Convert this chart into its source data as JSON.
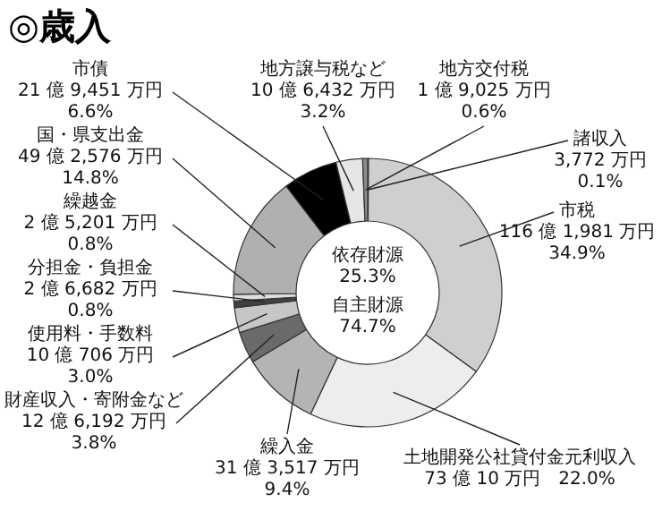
{
  "chart_data": {
    "type": "donut",
    "title": "◎歳入",
    "categories": [
      "諸収入",
      "市税",
      "土地開発公社貸付金元利収入",
      "繰入金",
      "財産収入・寄附金など",
      "使用料・手数料",
      "分担金・負担金",
      "繰越金",
      "国・県支出金",
      "市債",
      "地方譲与税など",
      "地方交付税"
    ],
    "values": [
      0.1,
      34.9,
      22.0,
      9.4,
      3.8,
      3.0,
      0.8,
      0.8,
      14.8,
      6.6,
      3.2,
      0.6
    ],
    "colors": [
      "#3a3a3a",
      "#cfcfcf",
      "#ededed",
      "#b4b4b4",
      "#6a6a6a",
      "#c6c6c6",
      "#404040",
      "#dedede",
      "#b0b0b0",
      "#000000",
      "#e6e6e6",
      "#8c8c8c"
    ],
    "value_labels": [
      "3,772 万円\n0.1%",
      "116 億 1,981 万円\n34.9%",
      "73 億 10 万円　22.0%",
      "31 億 3,517 万円\n9.4%",
      "12 億 6,192 万円\n3.8%",
      "10 億 706 万円\n3.0%",
      "2 億 6,682 万円\n0.8%",
      "2 億 5,201 万円\n0.8%",
      "49 億 2,576 万円\n14.8%",
      "21 億 9,451 万円\n6.6%",
      "10 億 6,432 万円\n3.2%",
      "1 億 9,025 万円\n0.6%"
    ],
    "annotations": [
      "依存財源\n25.3%",
      "自主財源\n74.7%"
    ]
  }
}
